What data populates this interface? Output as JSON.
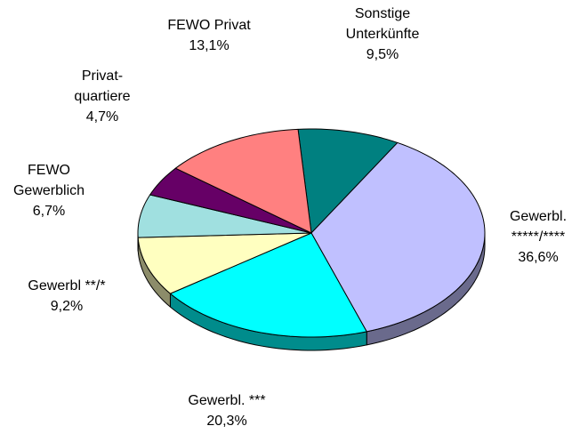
{
  "chart_data": {
    "type": "pie",
    "categories": [
      "Sonstige\nUnterkünfte",
      "Gewerbl.\n*****/****",
      "Gewerbl. ***",
      "Gewerbl **/*",
      "FEWO\nGewerblich",
      "Privat-\nquartiere",
      "FEWO Privat"
    ],
    "values": [
      9.5,
      36.6,
      20.3,
      9.2,
      6.7,
      4.7,
      13.1
    ],
    "value_labels": [
      "9,5%",
      "36,6%",
      "20,3%",
      "9,2%",
      "6,7%",
      "4,7%",
      "13,1%"
    ],
    "colors": [
      "#008080",
      "#c0c0ff",
      "#00ffff",
      "#ffffc0",
      "#a0e0e0",
      "#660066",
      "#ff8080"
    ]
  }
}
